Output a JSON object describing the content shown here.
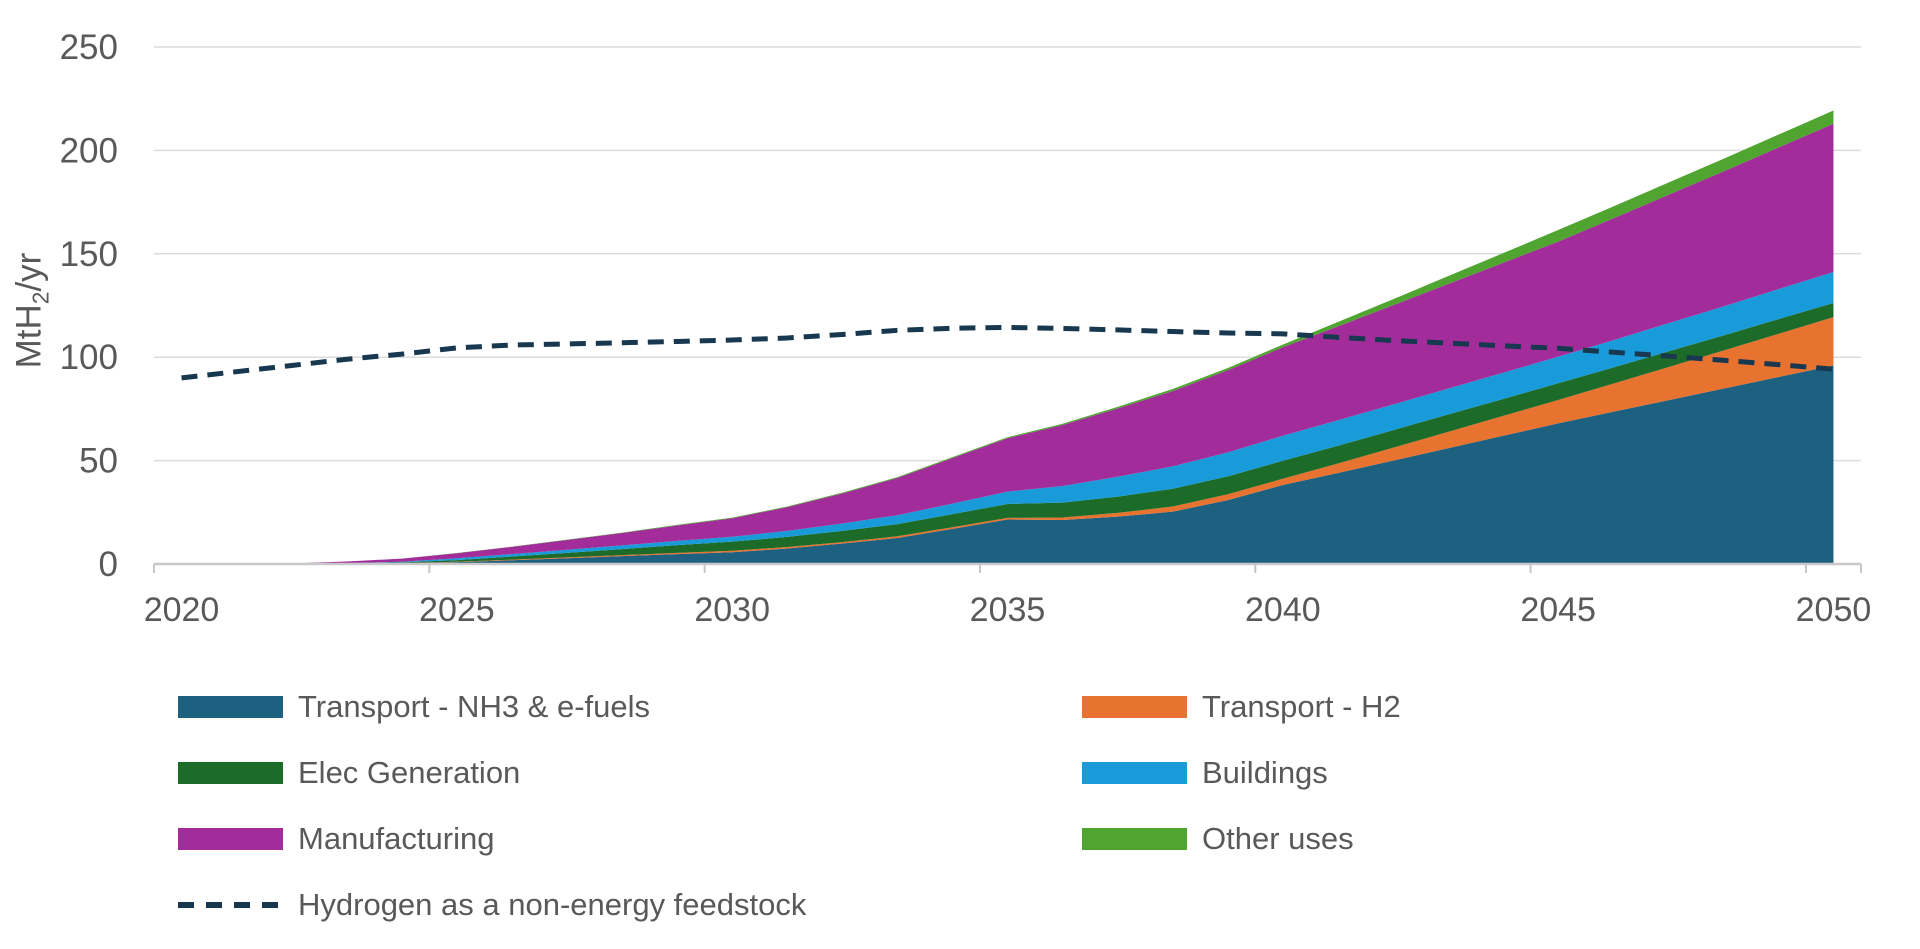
{
  "chart_data": {
    "type": "area",
    "stacked": true,
    "title": "",
    "ylabel": "MtH2/yr",
    "ylabel_parts": {
      "pre": "MtH",
      "sub": "2",
      "post": "/yr"
    },
    "xlabel": "",
    "x": [
      2020,
      2021,
      2022,
      2023,
      2024,
      2025,
      2026,
      2027,
      2028,
      2029,
      2030,
      2031,
      2032,
      2033,
      2034,
      2035,
      2036,
      2037,
      2038,
      2039,
      2040,
      2041,
      2042,
      2043,
      2044,
      2045,
      2046,
      2047,
      2048,
      2049,
      2050
    ],
    "x_tick_labels": [
      "2020",
      "2025",
      "2030",
      "2035",
      "2040",
      "2045",
      "2050"
    ],
    "y_ticks": [
      0,
      50,
      100,
      150,
      200,
      250
    ],
    "ylim": [
      0,
      250
    ],
    "grid": "horizontal",
    "legend_position": "bottom",
    "series": [
      {
        "name": "Transport - NH3 & e-fuels",
        "color": "#1E6080",
        "values": [
          0,
          0,
          0,
          0.2,
          0.4,
          0.9,
          1.8,
          2.8,
          3.8,
          4.8,
          5.7,
          7.5,
          9.9,
          12.6,
          17,
          21.5,
          21.3,
          22.9,
          25.3,
          30.9,
          38.2,
          44,
          50,
          56,
          62,
          68,
          73.6,
          79.2,
          84.8,
          90.4,
          96
        ]
      },
      {
        "name": "Transport - H2",
        "color": "#E87230",
        "values": [
          0,
          0,
          0,
          0,
          0.1,
          0.2,
          0.3,
          0.4,
          0.5,
          0.6,
          0.7,
          0.7,
          0.7,
          0.8,
          0.8,
          0.8,
          1.2,
          1.8,
          2.5,
          2.8,
          3,
          4.6,
          6.2,
          7.9,
          9.6,
          11.3,
          13.6,
          16,
          18.4,
          20.9,
          23.4
        ]
      },
      {
        "name": "Elec Generation",
        "color": "#1C6B28",
        "values": [
          0,
          0,
          0,
          0.1,
          0.3,
          0.8,
          1.5,
          2.2,
          2.9,
          3.7,
          4.4,
          4.9,
          5.4,
          5.9,
          6.3,
          6.7,
          7.2,
          7.9,
          8.6,
          8.7,
          8.7,
          8.6,
          8.5,
          8.4,
          8.2,
          8.1,
          7.8,
          7.6,
          7.3,
          7.1,
          6.8
        ]
      },
      {
        "name": "Buildings",
        "color": "#189BD8",
        "values": [
          0,
          0,
          0,
          0.1,
          0.3,
          0.9,
          1.2,
          1.5,
          1.8,
          2.1,
          2.4,
          2.9,
          3.6,
          4.3,
          5.1,
          6,
          8,
          9.6,
          10.8,
          11.6,
          12.1,
          12.3,
          12.4,
          12.5,
          12.7,
          12.8,
          13.2,
          13.6,
          14,
          14.5,
          15
        ]
      },
      {
        "name": "Manufacturing",
        "color": "#A32C9B",
        "values": [
          0,
          0,
          0.3,
          0.8,
          1.5,
          2.4,
          3.5,
          4.7,
          6,
          7.4,
          8.9,
          11.5,
          14.5,
          18,
          22,
          25.8,
          29.5,
          33,
          36.4,
          39.7,
          42.8,
          45.4,
          48,
          50.6,
          53.1,
          55.7,
          58.9,
          62.1,
          65.3,
          68.5,
          71.7
        ]
      },
      {
        "name": "Other uses",
        "color": "#4FA52F",
        "values": [
          0,
          0,
          0,
          0,
          0,
          0.1,
          0.1,
          0.2,
          0.2,
          0.3,
          0.3,
          0.3,
          0.4,
          0.4,
          0.5,
          0.5,
          0.6,
          0.8,
          1,
          1.1,
          1.3,
          2.1,
          2.9,
          3.8,
          4.7,
          5.6,
          5.8,
          5.9,
          6.1,
          6.2,
          6.4
        ]
      }
    ],
    "line_series": {
      "name": "Hydrogen as a non-energy feedstock",
      "color": "#17384F",
      "style": "dashed",
      "values": [
        90,
        93,
        96,
        99,
        101.5,
        104.5,
        105.9,
        106.4,
        107,
        107.6,
        108.3,
        109.3,
        111,
        113,
        114,
        114.4,
        113.9,
        113.2,
        112.4,
        111.7,
        111.3,
        109.6,
        108.1,
        106.8,
        105.5,
        104.3,
        102.4,
        100.5,
        98.5,
        96.4,
        94.2
      ]
    },
    "axis_colors": {
      "tick_text": "#595959",
      "gridline": "#DCDCDC",
      "axis_line": "#C9C9C9",
      "tick_mark": "#C6C6C6"
    }
  },
  "legend": {
    "left": [
      {
        "label": "Transport - NH3 & e-fuels",
        "color": "#1E6080",
        "kind": "swatch"
      },
      {
        "label": "Elec Generation",
        "color": "#1C6B28",
        "kind": "swatch"
      },
      {
        "label": "Manufacturing",
        "color": "#A32C9B",
        "kind": "swatch"
      },
      {
        "label": "Hydrogen as a non-energy feedstock",
        "color": "#17384F",
        "kind": "dash"
      }
    ],
    "right": [
      {
        "label": "Transport - H2",
        "color": "#E87230",
        "kind": "swatch"
      },
      {
        "label": "Buildings",
        "color": "#189BD8",
        "kind": "swatch"
      },
      {
        "label": "Other uses",
        "color": "#4FA52F",
        "kind": "swatch"
      }
    ]
  }
}
